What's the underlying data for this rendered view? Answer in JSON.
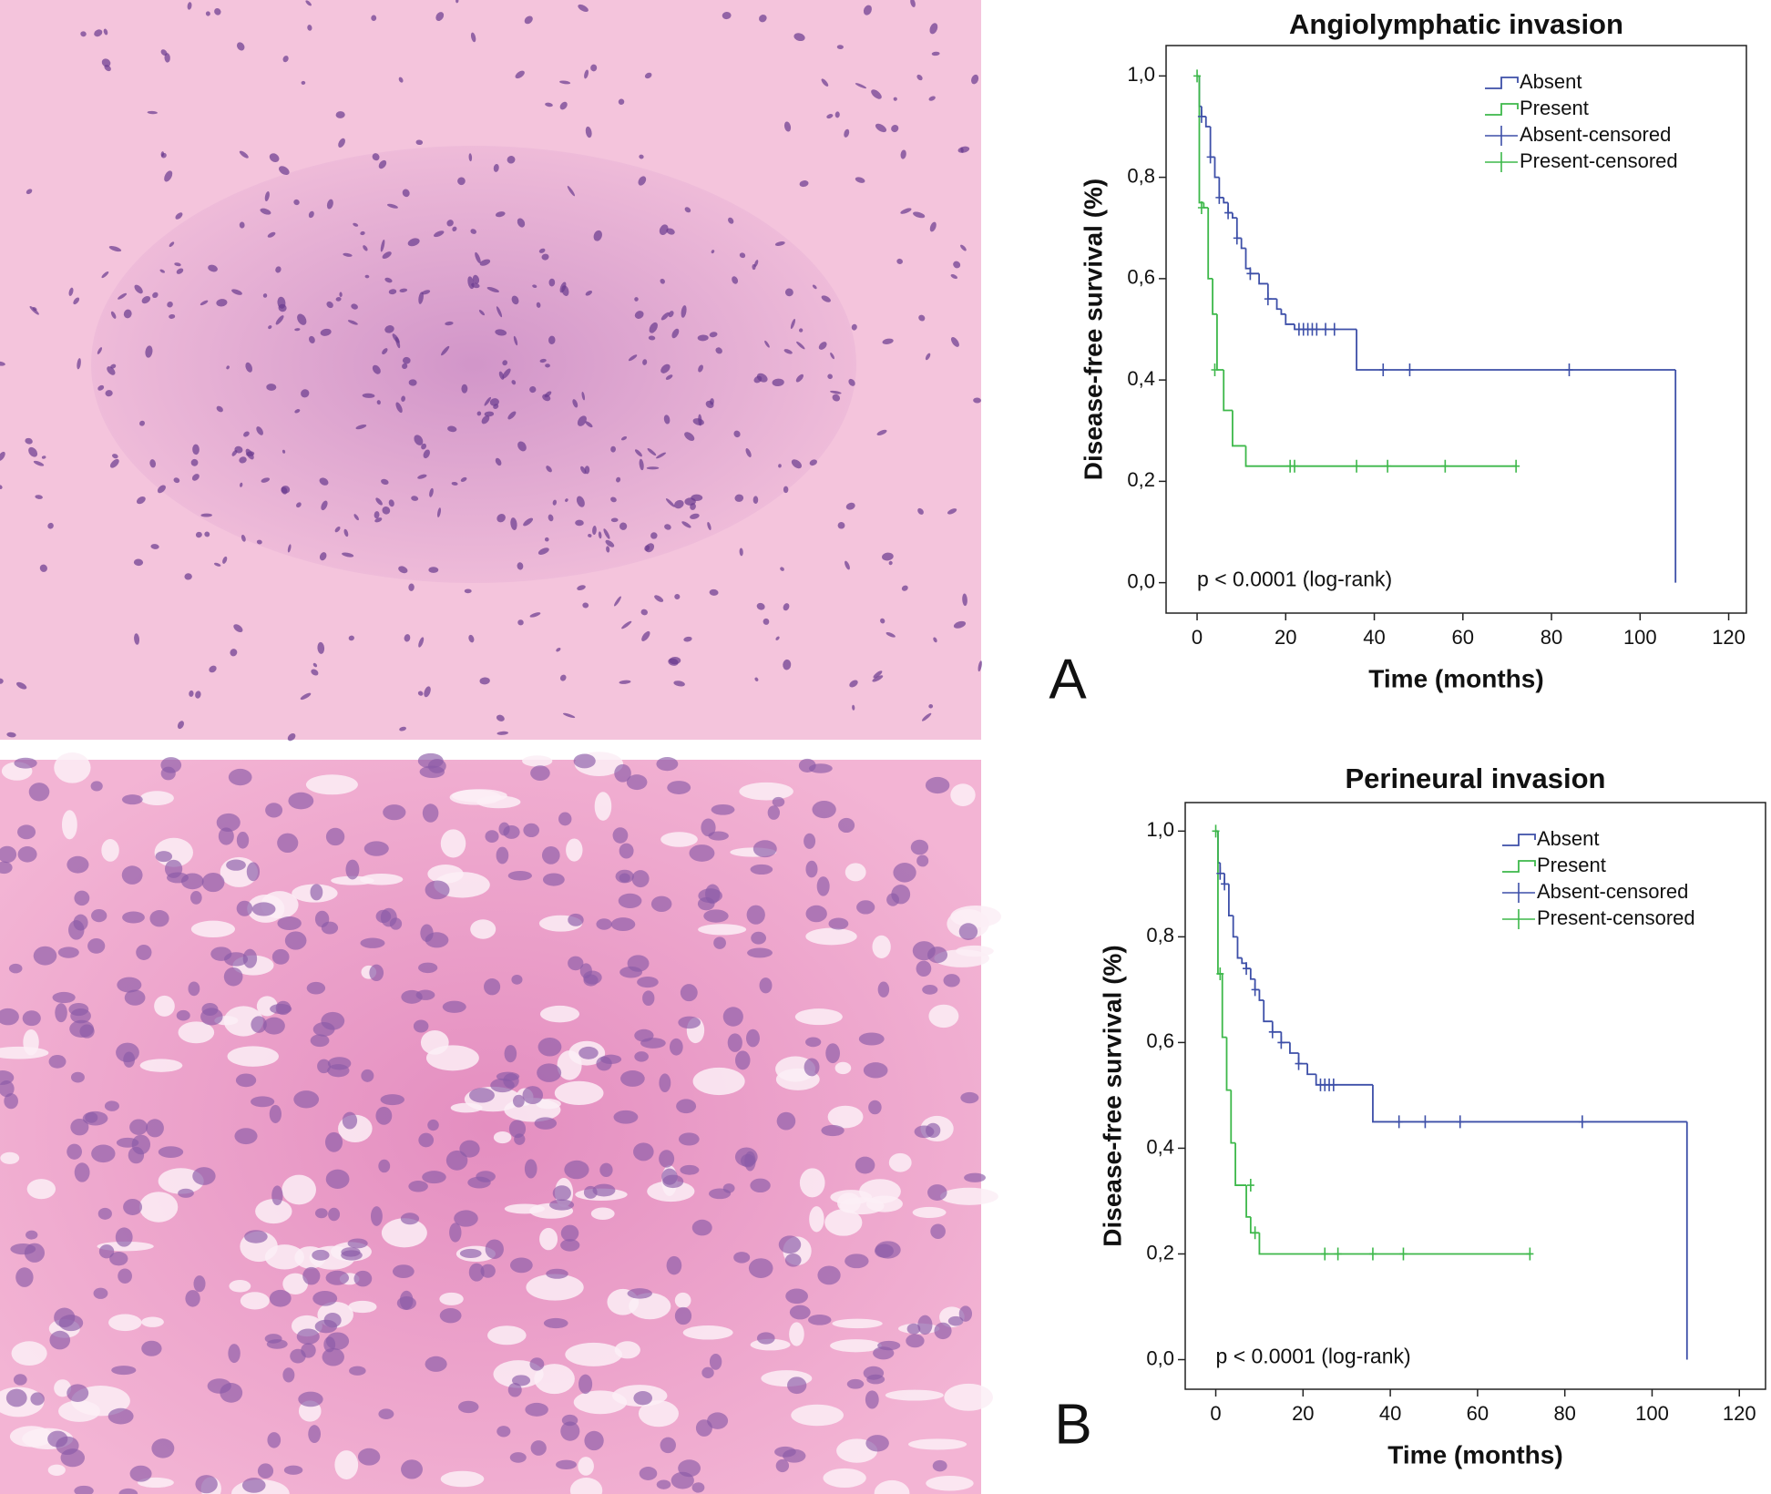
{
  "chart_data": [
    {
      "type": "step",
      "panel_label": "A",
      "title": "Angiolymphatic invasion",
      "xlabel": "Time (months)",
      "ylabel": "Disease-free survival (%)",
      "annotation": "p < 0.0001 (log-rank)",
      "xlim": [
        -7,
        124
      ],
      "ylim": [
        -0.06,
        1.06
      ],
      "xticks": [
        0,
        20,
        40,
        60,
        80,
        100,
        120
      ],
      "yticks": [
        {
          "value": 0,
          "label": "0,0"
        },
        {
          "value": 0.2,
          "label": "0,2"
        },
        {
          "value": 0.4,
          "label": "0,4"
        },
        {
          "value": 0.6,
          "label": "0,6"
        },
        {
          "value": 0.8,
          "label": "0,8"
        },
        {
          "value": 1.0,
          "label": "1,0"
        }
      ],
      "series": [
        {
          "name": "Absent",
          "color": "#3d4fa8",
          "marker": "step",
          "x": [
            0,
            0.5,
            1,
            2,
            3,
            4,
            5,
            6,
            7,
            8,
            9,
            10,
            11,
            12,
            14,
            16,
            18,
            19,
            20,
            22,
            36,
            108
          ],
          "values": [
            1.0,
            0.94,
            0.92,
            0.9,
            0.84,
            0.8,
            0.76,
            0.75,
            0.73,
            0.72,
            0.68,
            0.66,
            0.62,
            0.61,
            0.59,
            0.56,
            0.54,
            0.53,
            0.51,
            0.5,
            0.42,
            0.0
          ]
        },
        {
          "name": "Present",
          "color": "#3db84a",
          "marker": "step",
          "x": [
            0,
            0.5,
            1.5,
            2.5,
            3.5,
            4.5,
            6,
            8,
            11,
            72
          ],
          "values": [
            1.0,
            0.75,
            0.74,
            0.6,
            0.53,
            0.42,
            0.34,
            0.27,
            0.23,
            0.23
          ]
        },
        {
          "name": "Absent-censored",
          "color": "#3d4fa8",
          "marker": "plus",
          "x": [
            1,
            3,
            5,
            7,
            9,
            12,
            16,
            23,
            24,
            25,
            26,
            27,
            29,
            31,
            42,
            48,
            84
          ],
          "values": [
            0.92,
            0.84,
            0.76,
            0.73,
            0.68,
            0.61,
            0.56,
            0.5,
            0.5,
            0.5,
            0.5,
            0.5,
            0.5,
            0.5,
            0.42,
            0.42,
            0.42
          ]
        },
        {
          "name": "Present-censored",
          "color": "#3db84a",
          "marker": "plus",
          "x": [
            0,
            1,
            4,
            21,
            22,
            36,
            43,
            56,
            72
          ],
          "values": [
            1.0,
            0.74,
            0.42,
            0.23,
            0.23,
            0.23,
            0.23,
            0.23,
            0.23
          ]
        }
      ]
    },
    {
      "type": "step",
      "panel_label": "B",
      "title": "Perineural invasion",
      "xlabel": "Time (months)",
      "ylabel": "Disease-free survival (%)",
      "annotation": "p < 0.0001 (log-rank)",
      "xlim": [
        -7,
        126
      ],
      "ylim": [
        -0.056,
        1.054
      ],
      "xticks": [
        0,
        20,
        40,
        60,
        80,
        100,
        120
      ],
      "yticks": [
        {
          "value": 0,
          "label": "0,0"
        },
        {
          "value": 0.2,
          "label": "0,2"
        },
        {
          "value": 0.4,
          "label": "0,4"
        },
        {
          "value": 0.6,
          "label": "0,6"
        },
        {
          "value": 0.8,
          "label": "0,8"
        },
        {
          "value": 1.0,
          "label": "1,0"
        }
      ],
      "series": [
        {
          "name": "Absent",
          "color": "#3d4fa8",
          "marker": "step",
          "x": [
            0,
            0.5,
            1,
            2,
            3,
            4,
            5,
            6,
            7,
            8,
            9,
            10,
            11,
            13,
            15,
            17,
            19,
            21,
            23,
            36,
            108
          ],
          "values": [
            1.0,
            0.94,
            0.92,
            0.9,
            0.84,
            0.8,
            0.76,
            0.75,
            0.74,
            0.72,
            0.7,
            0.68,
            0.64,
            0.62,
            0.6,
            0.58,
            0.56,
            0.54,
            0.52,
            0.45,
            0.0
          ]
        },
        {
          "name": "Present",
          "color": "#3db84a",
          "marker": "step",
          "x": [
            0,
            0.5,
            1.5,
            2.5,
            3.5,
            4.5,
            7,
            8,
            10,
            72
          ],
          "values": [
            1.0,
            0.73,
            0.61,
            0.51,
            0.41,
            0.33,
            0.27,
            0.24,
            0.2,
            0.2
          ]
        },
        {
          "name": "Absent-censored",
          "color": "#3d4fa8",
          "marker": "plus",
          "x": [
            1,
            2,
            7,
            9,
            13,
            15,
            19,
            24,
            25,
            26,
            27,
            42,
            48,
            56,
            84
          ],
          "values": [
            0.92,
            0.9,
            0.74,
            0.7,
            0.62,
            0.6,
            0.56,
            0.52,
            0.52,
            0.52,
            0.52,
            0.45,
            0.45,
            0.45,
            0.45
          ]
        },
        {
          "name": "Present-censored",
          "color": "#3db84a",
          "marker": "plus",
          "x": [
            0,
            1,
            8,
            9,
            25,
            28,
            36,
            43,
            72
          ],
          "values": [
            1.0,
            0.73,
            0.33,
            0.24,
            0.2,
            0.2,
            0.2,
            0.2,
            0.2
          ]
        }
      ]
    }
  ]
}
